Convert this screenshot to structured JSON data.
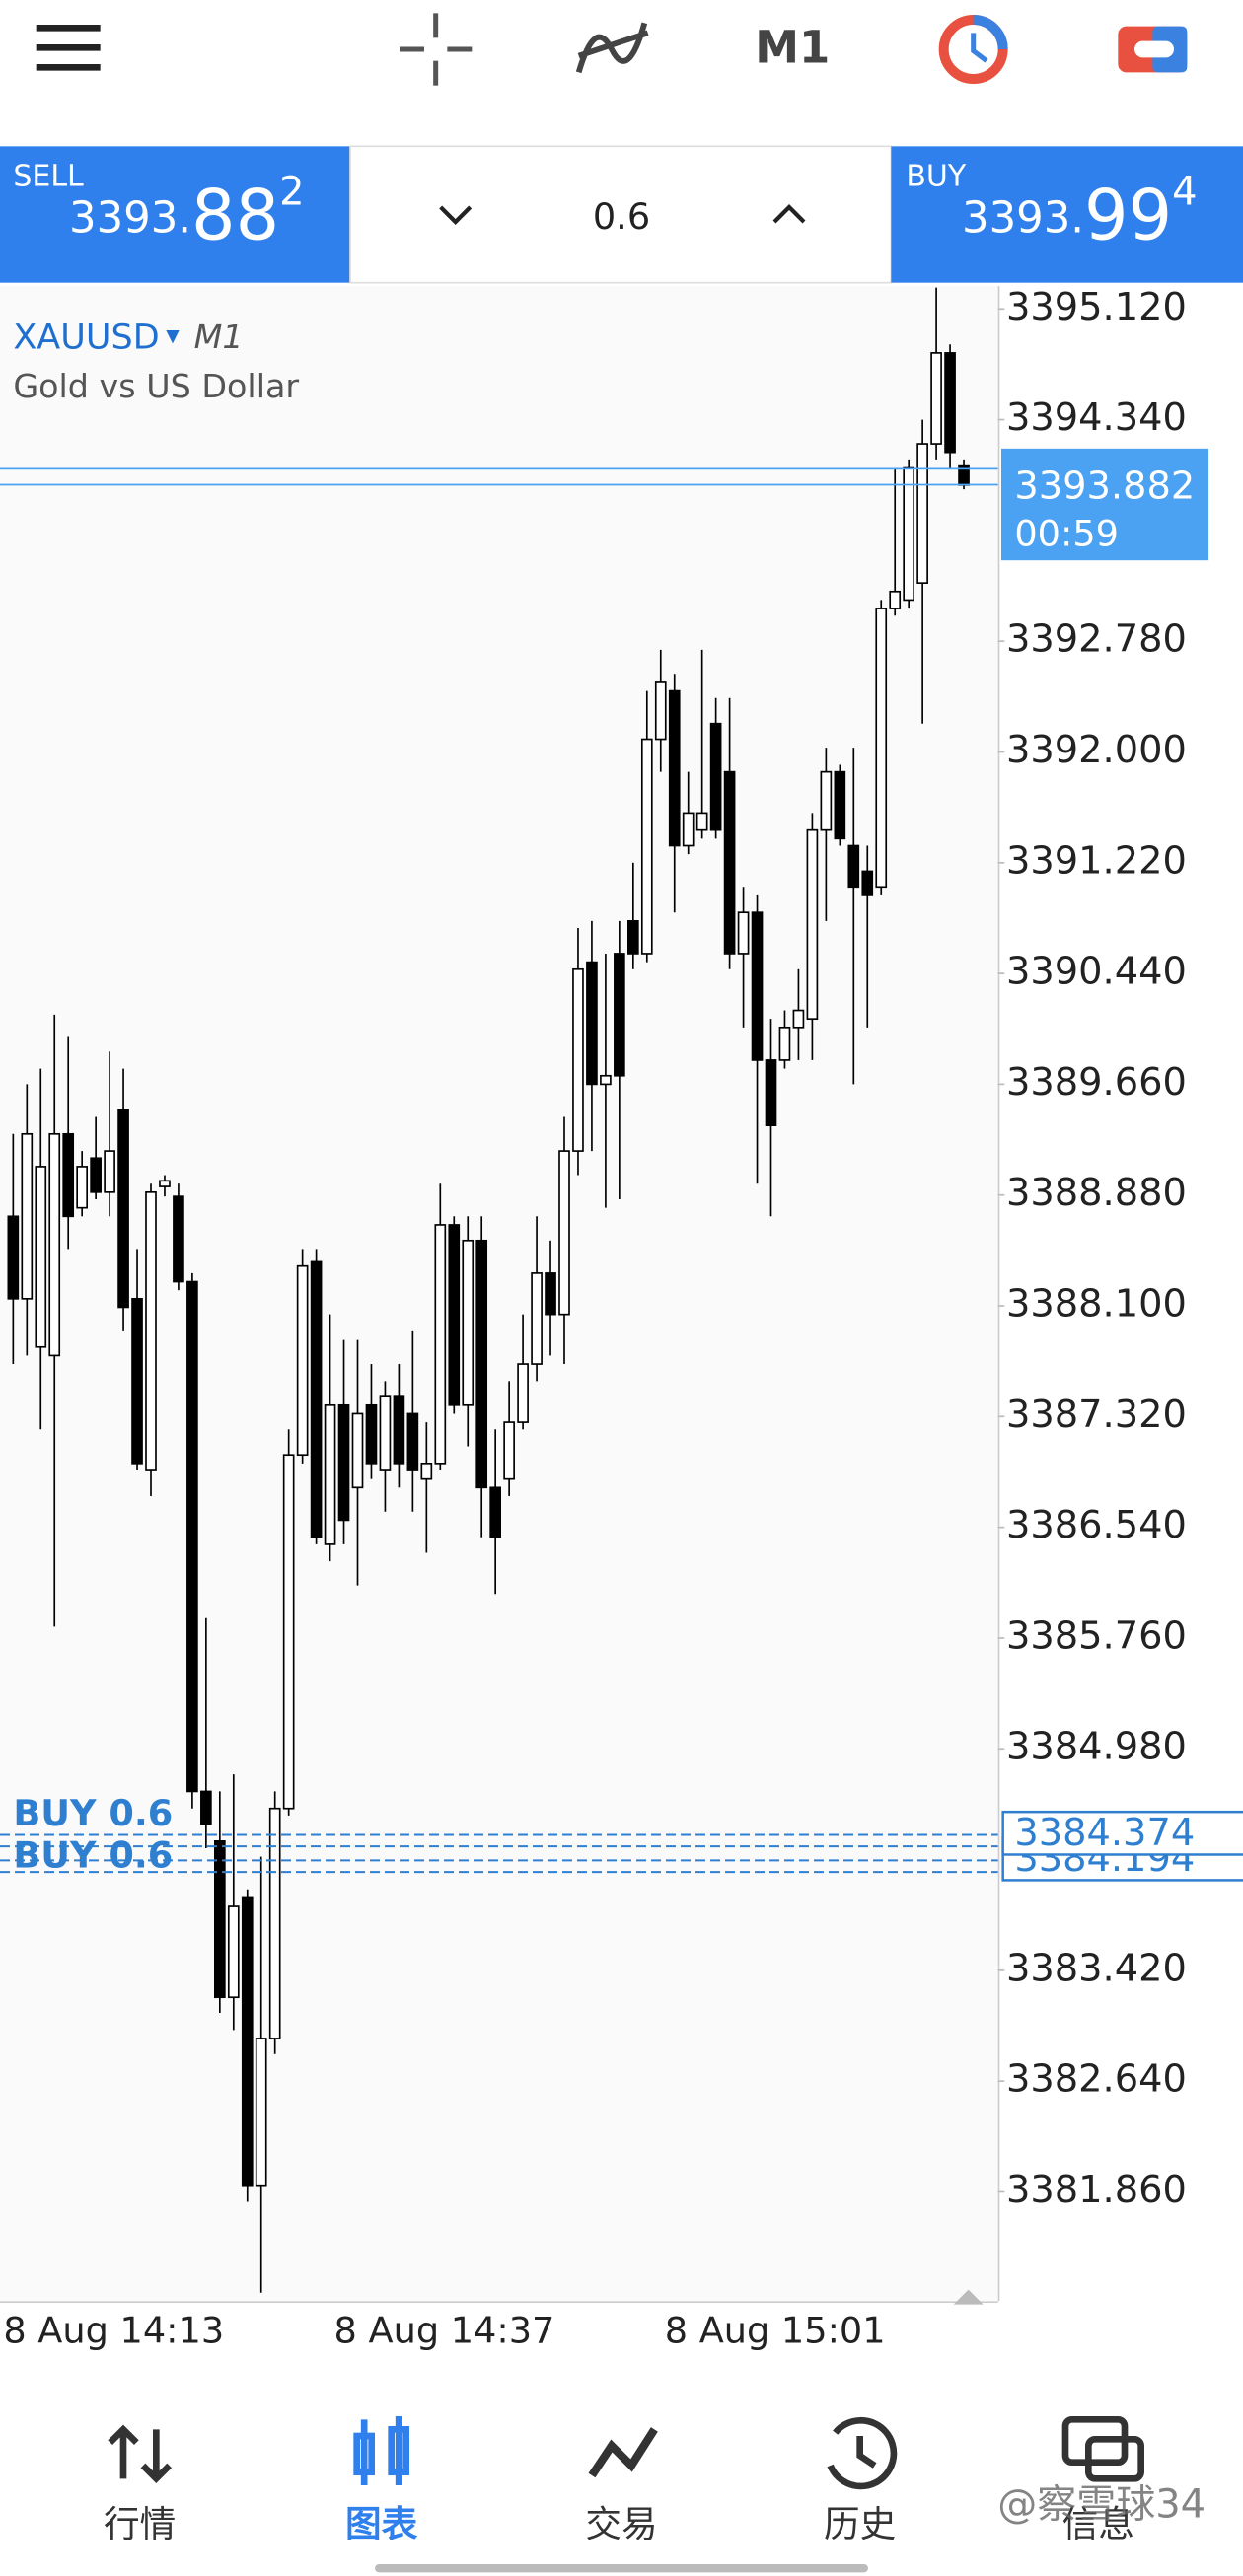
{
  "toolbar": {
    "timeframe": "M1"
  },
  "trade_panel": {
    "sell": {
      "label": "SELL",
      "price": "3393.",
      "big": "88",
      "sup": "2"
    },
    "buy": {
      "label": "BUY",
      "price": "3393.",
      "big": "99",
      "sup": "4"
    },
    "volume": "0.6"
  },
  "chart_data": {
    "type": "candlestick",
    "symbol": "XAUUSD",
    "timeframe": "M1",
    "description": "Gold vs US Dollar",
    "categories": [
      "8 Aug 14:13",
      null,
      null,
      null,
      null,
      null,
      null,
      null,
      null,
      null,
      null,
      null,
      null,
      null,
      null,
      null,
      null,
      null,
      null,
      null,
      null,
      null,
      null,
      null,
      "8 Aug 14:37",
      null,
      null,
      null,
      null,
      null,
      null,
      null,
      null,
      null,
      null,
      null,
      null,
      null,
      null,
      null,
      null,
      null,
      null,
      null,
      null,
      null,
      null,
      null,
      "8 Aug 15:01",
      null,
      null,
      null,
      null,
      null,
      null,
      null,
      null,
      null,
      null,
      null,
      null,
      null,
      null,
      null,
      null,
      null,
      null,
      null,
      null,
      null
    ],
    "open": [
      3388.73,
      3388.15,
      3387.81,
      3387.75,
      3389.31,
      3388.79,
      3389.14,
      3388.9,
      3389.48,
      3388.15,
      3386.94,
      3388.94,
      3388.87,
      3388.27,
      3384.68,
      3384.33,
      3383.23,
      3383.93,
      3381.9,
      3382.94,
      3384.56,
      3387.05,
      3388.41,
      3386.42,
      3387.4,
      3386.82,
      3387.4,
      3386.94,
      3387.46,
      3387.34,
      3386.88,
      3386.99,
      3388.67,
      3387.4,
      3388.56,
      3386.82,
      3386.88,
      3387.28,
      3387.69,
      3388.33,
      3388.04,
      3389.19,
      3390.52,
      3389.66,
      3390.58,
      3390.81,
      3390.58,
      3392.09,
      3392.43,
      3391.34,
      3391.45,
      3392.2,
      3391.86,
      3390.58,
      3390.87,
      3389.83,
      3389.83,
      3390.06,
      3390.12,
      3391.45,
      3391.86,
      3391.34,
      3391.16,
      3391.05,
      3393.01,
      3393.07,
      3393.19,
      3394.17,
      3394.81,
      3394.02
    ],
    "high": [
      3389.31,
      3389.66,
      3389.77,
      3390.15,
      3390.0,
      3389.19,
      3389.43,
      3389.89,
      3389.77,
      3388.5,
      3388.96,
      3389.02,
      3388.96,
      3388.33,
      3385.9,
      3384.68,
      3384.8,
      3383.99,
      3384.22,
      3384.68,
      3387.23,
      3388.5,
      3388.5,
      3388.04,
      3387.86,
      3387.86,
      3387.69,
      3387.57,
      3387.69,
      3387.92,
      3387.28,
      3388.96,
      3388.73,
      3388.73,
      3388.73,
      3387.23,
      3387.57,
      3388.04,
      3388.73,
      3388.56,
      3389.43,
      3390.76,
      3390.81,
      3390.58,
      3390.81,
      3391.22,
      3392.43,
      3392.72,
      3392.55,
      3391.86,
      3392.72,
      3392.38,
      3392.38,
      3391.05,
      3390.99,
      3390.12,
      3390.18,
      3390.47,
      3391.57,
      3392.03,
      3391.91,
      3392.03,
      3391.34,
      3393.07,
      3394.0,
      3394.06,
      3394.34,
      3395.27,
      3394.87,
      3394.06
    ],
    "low": [
      3387.69,
      3387.75,
      3387.23,
      3385.84,
      3388.5,
      3388.73,
      3388.85,
      3388.73,
      3387.92,
      3386.94,
      3386.76,
      3388.87,
      3388.21,
      3384.56,
      3384.28,
      3383.12,
      3383.0,
      3381.79,
      3381.15,
      3382.83,
      3384.51,
      3386.99,
      3386.42,
      3386.3,
      3386.42,
      3386.13,
      3386.88,
      3386.65,
      3386.82,
      3386.65,
      3386.36,
      3386.94,
      3387.34,
      3387.11,
      3386.47,
      3386.07,
      3386.76,
      3387.23,
      3387.57,
      3387.75,
      3387.69,
      3389.02,
      3389.19,
      3388.79,
      3388.85,
      3390.47,
      3390.52,
      3391.86,
      3390.87,
      3391.28,
      3391.39,
      3391.39,
      3390.47,
      3390.06,
      3388.96,
      3388.73,
      3389.77,
      3389.83,
      3389.83,
      3390.81,
      3391.34,
      3389.66,
      3390.06,
      3390.99,
      3392.96,
      3393.01,
      3392.2,
      3394.06,
      3394.0,
      3393.85
    ],
    "close": [
      3388.15,
      3389.31,
      3389.08,
      3389.31,
      3388.73,
      3389.08,
      3388.9,
      3389.19,
      3388.09,
      3386.99,
      3388.9,
      3388.98,
      3388.27,
      3384.68,
      3384.45,
      3383.23,
      3383.87,
      3381.9,
      3382.94,
      3384.56,
      3387.05,
      3388.38,
      3386.47,
      3387.4,
      3386.59,
      3387.34,
      3386.99,
      3387.46,
      3386.99,
      3386.94,
      3386.99,
      3388.67,
      3387.4,
      3388.56,
      3386.82,
      3386.47,
      3387.28,
      3387.69,
      3388.33,
      3388.04,
      3389.19,
      3390.47,
      3389.66,
      3389.72,
      3389.72,
      3390.58,
      3392.09,
      3392.49,
      3391.34,
      3391.57,
      3391.57,
      3391.45,
      3390.58,
      3390.87,
      3389.83,
      3389.37,
      3390.06,
      3390.18,
      3391.45,
      3391.86,
      3391.39,
      3391.05,
      3390.99,
      3393.01,
      3393.13,
      3394.0,
      3394.17,
      3394.81,
      3394.11,
      3393.88
    ],
    "up_color": "#ffffff",
    "down_color": "#000000",
    "outline_color": "#000000",
    "ylim": [
      3381.09,
      3395.27
    ],
    "yticks": [
      {
        "value": 3395.12,
        "label": "3395.120"
      },
      {
        "value": 3394.34,
        "label": "3394.340"
      },
      {
        "value": 3392.78,
        "label": "3392.780"
      },
      {
        "value": 3392.0,
        "label": "3392.000"
      },
      {
        "value": 3391.22,
        "label": "3391.220"
      },
      {
        "value": 3390.44,
        "label": "3390.440"
      },
      {
        "value": 3389.66,
        "label": "3389.660"
      },
      {
        "value": 3388.88,
        "label": "3388.880"
      },
      {
        "value": 3388.1,
        "label": "3388.100"
      },
      {
        "value": 3387.32,
        "label": "3387.320"
      },
      {
        "value": 3386.54,
        "label": "3386.540"
      },
      {
        "value": 3385.76,
        "label": "3385.760"
      },
      {
        "value": 3384.98,
        "label": "3384.980"
      },
      {
        "value": 3383.42,
        "label": "3383.420"
      },
      {
        "value": 3382.64,
        "label": "3382.640"
      },
      {
        "value": 3381.86,
        "label": "3381.860"
      }
    ],
    "ask": 3393.994,
    "bid": 3393.882,
    "bid_color": "#4ba1f2",
    "countdown": "00:59",
    "orders": [
      {
        "label": "BUY 0.6",
        "price": 3384.374
      },
      {
        "label": "BUY 0.6",
        "price": 3384.194
      }
    ],
    "order_color": "#2f7fd1"
  },
  "nav": {
    "items": [
      "行情",
      "图表",
      "交易",
      "历史",
      "信息"
    ],
    "active": 1,
    "active_color": "#2f80ed"
  },
  "watermark": "@察雪球34"
}
